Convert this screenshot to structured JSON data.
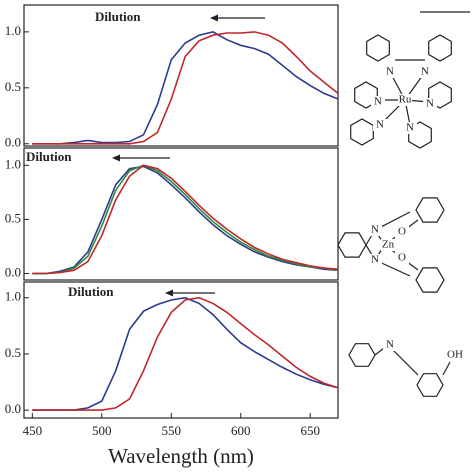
{
  "chart_data": [
    {
      "type": "line",
      "annotation": "Dilution",
      "xlim": [
        444,
        670
      ],
      "ylim": [
        -0.02,
        1.24
      ],
      "yticks": [
        {
          "value": 1,
          "label": "1.0"
        },
        {
          "value": 0.5,
          "label": "0.5"
        },
        {
          "value": 0,
          "label": "0.0"
        }
      ],
      "x": [
        450,
        460,
        470,
        480,
        490,
        500,
        510,
        520,
        530,
        540,
        550,
        560,
        570,
        580,
        590,
        600,
        610,
        620,
        630,
        640,
        650,
        660,
        670
      ],
      "series": [
        {
          "color": "#2b3b8f",
          "values": [
            0,
            0,
            0,
            0.01,
            0.03,
            0.01,
            0.01,
            0.02,
            0.08,
            0.35,
            0.75,
            0.9,
            0.97,
            1.0,
            0.93,
            0.88,
            0.85,
            0.8,
            0.7,
            0.6,
            0.52,
            0.45,
            0.4
          ]
        },
        {
          "color": "#c0272d",
          "values": [
            0,
            0,
            0,
            0,
            0,
            0,
            0,
            0,
            0.02,
            0.1,
            0.4,
            0.78,
            0.92,
            0.97,
            0.99,
            0.99,
            1.0,
            0.97,
            0.9,
            0.78,
            0.65,
            0.55,
            0.45
          ]
        }
      ]
    },
    {
      "type": "line",
      "annotation": "Dilution",
      "xlim": [
        444,
        670
      ],
      "ylim": [
        -0.06,
        1.16
      ],
      "yticks": [
        {
          "value": 1,
          "label": "1.0"
        },
        {
          "value": 0.5,
          "label": "0.5"
        },
        {
          "value": 0,
          "label": "0.0"
        }
      ],
      "x": [
        450,
        460,
        470,
        480,
        490,
        500,
        510,
        520,
        530,
        540,
        550,
        560,
        570,
        580,
        590,
        600,
        610,
        620,
        630,
        640,
        650,
        660,
        670
      ],
      "series": [
        {
          "color": "#2b3b8f",
          "values": [
            0,
            0,
            0.02,
            0.06,
            0.2,
            0.5,
            0.82,
            0.97,
            0.99,
            0.93,
            0.82,
            0.7,
            0.57,
            0.45,
            0.35,
            0.27,
            0.2,
            0.15,
            0.11,
            0.08,
            0.06,
            0.04,
            0.03
          ]
        },
        {
          "color": "#2e8b3a",
          "values": [
            0,
            0,
            0.01,
            0.05,
            0.16,
            0.44,
            0.77,
            0.95,
            1.0,
            0.95,
            0.85,
            0.73,
            0.6,
            0.48,
            0.38,
            0.29,
            0.22,
            0.16,
            0.12,
            0.09,
            0.06,
            0.05,
            0.03
          ]
        },
        {
          "color": "#c0272d",
          "values": [
            0,
            0,
            0.01,
            0.03,
            0.11,
            0.35,
            0.68,
            0.9,
            1.0,
            0.97,
            0.88,
            0.76,
            0.63,
            0.51,
            0.41,
            0.32,
            0.24,
            0.18,
            0.13,
            0.1,
            0.07,
            0.05,
            0.04
          ]
        }
      ]
    },
    {
      "type": "line",
      "annotation": "Dilution",
      "x_label": "Wavelength (nm)",
      "xlim": [
        444,
        670
      ],
      "ylim": [
        -0.07,
        1.14
      ],
      "xticks": [
        450,
        500,
        550,
        600,
        650
      ],
      "yticks": [
        {
          "value": 1,
          "label": "1.0"
        },
        {
          "value": 0.5,
          "label": "0.5"
        },
        {
          "value": 0,
          "label": "0.0"
        }
      ],
      "x": [
        450,
        460,
        470,
        480,
        490,
        500,
        510,
        520,
        530,
        540,
        550,
        560,
        570,
        580,
        590,
        600,
        610,
        620,
        630,
        640,
        650,
        660,
        670
      ],
      "series": [
        {
          "color": "#2b3b8f",
          "values": [
            0,
            0,
            0,
            0,
            0.02,
            0.08,
            0.35,
            0.72,
            0.88,
            0.94,
            0.98,
            1.0,
            0.95,
            0.85,
            0.72,
            0.6,
            0.52,
            0.45,
            0.38,
            0.32,
            0.27,
            0.23,
            0.2
          ]
        },
        {
          "color": "#c0272d",
          "values": [
            0,
            0,
            0,
            0,
            0,
            0,
            0.02,
            0.1,
            0.35,
            0.65,
            0.87,
            0.98,
            1.0,
            0.95,
            0.87,
            0.77,
            0.67,
            0.58,
            0.48,
            0.38,
            0.3,
            0.24,
            0.2
          ]
        }
      ]
    }
  ],
  "structures": [
    {
      "atoms": [
        "N",
        "N",
        "Ru",
        "N",
        "N",
        "N",
        "N"
      ]
    },
    {
      "atoms": [
        "N",
        "O",
        "Zn",
        "N",
        "O"
      ]
    },
    {
      "atoms": [
        "N",
        "OH"
      ]
    }
  ]
}
